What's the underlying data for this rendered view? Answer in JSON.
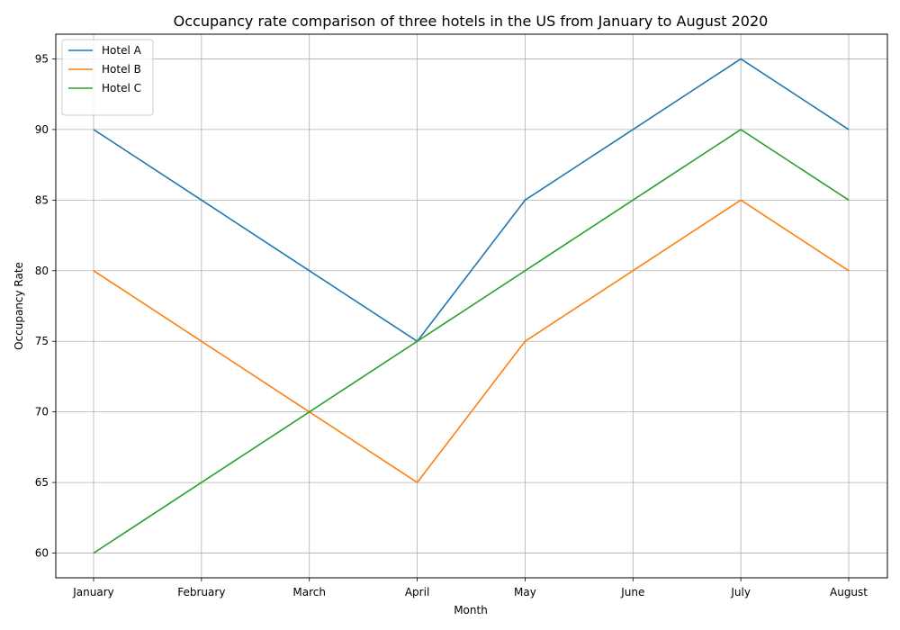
{
  "chart_data": {
    "type": "line",
    "title": "Occupancy rate comparison of three hotels in the US from January to August 2020",
    "xlabel": "Month",
    "ylabel": "Occupancy Rate",
    "categories": [
      "January",
      "February",
      "March",
      "April",
      "May",
      "June",
      "July",
      "August"
    ],
    "ylim": [
      58.25,
      96.75
    ],
    "yticks": [
      60,
      65,
      70,
      75,
      80,
      85,
      90,
      95
    ],
    "grid": true,
    "legend_position": "top-left",
    "series": [
      {
        "name": "Hotel A",
        "color": "#1f77b4",
        "values": [
          90,
          85,
          80,
          75,
          85,
          90,
          95,
          90
        ]
      },
      {
        "name": "Hotel B",
        "color": "#ff7f0e",
        "values": [
          80,
          75,
          70,
          65,
          75,
          80,
          85,
          80
        ]
      },
      {
        "name": "Hotel C",
        "color": "#2ca02c",
        "values": [
          60,
          65,
          70,
          75,
          80,
          85,
          90,
          85
        ]
      }
    ]
  }
}
